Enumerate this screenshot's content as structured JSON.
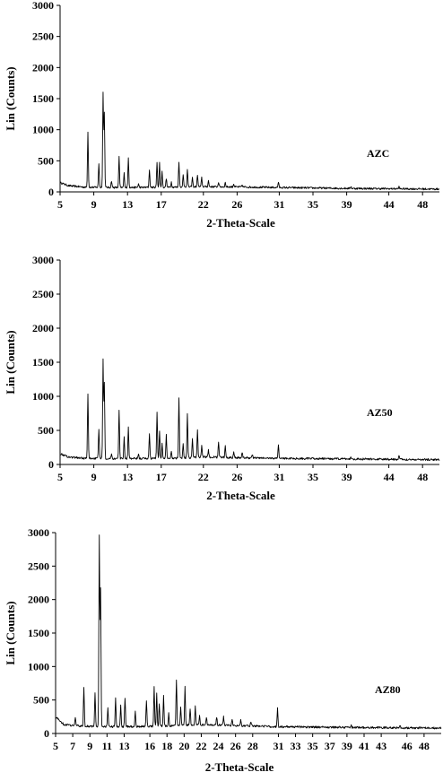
{
  "chart_data": [
    {
      "type": "line",
      "xlabel": "2-Theta-Scale",
      "ylabel": "Lin (Counts)",
      "annotation": "AZC",
      "xlim": [
        5,
        50
      ],
      "ylim": [
        0,
        3000
      ],
      "xticks": [
        5,
        9,
        13,
        17,
        22,
        26,
        31,
        35,
        39,
        44,
        48
      ],
      "yticks": [
        0,
        500,
        1000,
        1500,
        2000,
        2500,
        3000
      ],
      "baseline": [
        [
          5,
          150
        ],
        [
          6,
          100
        ],
        [
          8,
          75
        ],
        [
          12,
          70
        ],
        [
          18,
          75
        ],
        [
          22,
          85
        ],
        [
          26,
          80
        ],
        [
          31,
          70
        ],
        [
          40,
          55
        ],
        [
          50,
          45
        ]
      ],
      "peaks": [
        [
          8.3,
          960
        ],
        [
          9.6,
          460
        ],
        [
          10.1,
          1590
        ],
        [
          10.25,
          1280
        ],
        [
          11.1,
          180
        ],
        [
          12.0,
          560
        ],
        [
          12.6,
          300
        ],
        [
          13.1,
          560
        ],
        [
          14.3,
          130
        ],
        [
          15.6,
          360
        ],
        [
          16.5,
          480
        ],
        [
          16.8,
          470
        ],
        [
          17.1,
          330
        ],
        [
          17.6,
          220
        ],
        [
          18.2,
          160
        ],
        [
          19.1,
          490
        ],
        [
          19.6,
          290
        ],
        [
          20.1,
          370
        ],
        [
          20.7,
          230
        ],
        [
          21.3,
          280
        ],
        [
          21.8,
          230
        ],
        [
          22.6,
          180
        ],
        [
          23.8,
          160
        ],
        [
          24.6,
          150
        ],
        [
          25.6,
          130
        ],
        [
          26.6,
          110
        ],
        [
          30.9,
          160
        ],
        [
          39.5,
          90
        ],
        [
          45.2,
          80
        ]
      ],
      "series": [
        {
          "values": []
        }
      ]
    },
    {
      "type": "line",
      "xlabel": "2-Theta-Scale",
      "ylabel": "Lin (Counts)",
      "annotation": "AZ50",
      "xlim": [
        5,
        50
      ],
      "ylim": [
        0,
        3000
      ],
      "xticks": [
        5,
        9,
        13,
        17,
        22,
        26,
        31,
        35,
        39,
        44,
        48
      ],
      "yticks": [
        0,
        500,
        1000,
        1500,
        2000,
        2500,
        3000
      ],
      "baseline": [
        [
          5,
          160
        ],
        [
          6,
          110
        ],
        [
          8,
          90
        ],
        [
          12,
          85
        ],
        [
          18,
          90
        ],
        [
          22,
          110
        ],
        [
          26,
          100
        ],
        [
          31,
          90
        ],
        [
          40,
          80
        ],
        [
          50,
          70
        ]
      ],
      "peaks": [
        [
          8.3,
          1040
        ],
        [
          9.6,
          530
        ],
        [
          10.1,
          1530
        ],
        [
          10.25,
          1200
        ],
        [
          11.1,
          160
        ],
        [
          12.0,
          800
        ],
        [
          12.6,
          400
        ],
        [
          13.1,
          550
        ],
        [
          14.3,
          150
        ],
        [
          15.6,
          460
        ],
        [
          16.5,
          780
        ],
        [
          16.8,
          500
        ],
        [
          17.1,
          300
        ],
        [
          17.6,
          430
        ],
        [
          18.2,
          200
        ],
        [
          19.1,
          990
        ],
        [
          19.6,
          300
        ],
        [
          20.1,
          750
        ],
        [
          20.7,
          370
        ],
        [
          21.3,
          510
        ],
        [
          21.8,
          270
        ],
        [
          22.6,
          210
        ],
        [
          23.8,
          340
        ],
        [
          24.6,
          270
        ],
        [
          25.6,
          200
        ],
        [
          26.6,
          180
        ],
        [
          27.8,
          150
        ],
        [
          30.9,
          300
        ],
        [
          39.5,
          110
        ],
        [
          45.2,
          130
        ]
      ],
      "series": [
        {
          "values": []
        }
      ]
    },
    {
      "type": "line",
      "xlabel": "2-Theta-Scale",
      "ylabel": "Lin (Counts)",
      "annotation": "AZ80",
      "xlim": [
        5,
        50
      ],
      "ylim": [
        0,
        3000
      ],
      "xticks": [
        5,
        7,
        9,
        11,
        13,
        16,
        18,
        20,
        22,
        24,
        26,
        28,
        31,
        33,
        35,
        37,
        39,
        41,
        43,
        46,
        48
      ],
      "yticks": [
        0,
        500,
        1000,
        1500,
        2000,
        2500,
        3000
      ],
      "baseline": [
        [
          5,
          250
        ],
        [
          6,
          130
        ],
        [
          8,
          110
        ],
        [
          12,
          100
        ],
        [
          18,
          110
        ],
        [
          22,
          130
        ],
        [
          26,
          120
        ],
        [
          31,
          100
        ],
        [
          40,
          90
        ],
        [
          50,
          80
        ]
      ],
      "peaks": [
        [
          7.3,
          250
        ],
        [
          8.3,
          700
        ],
        [
          9.6,
          600
        ],
        [
          10.1,
          2930
        ],
        [
          10.25,
          2150
        ],
        [
          11.1,
          380
        ],
        [
          12.0,
          520
        ],
        [
          12.6,
          420
        ],
        [
          13.1,
          540
        ],
        [
          14.3,
          330
        ],
        [
          15.6,
          500
        ],
        [
          16.5,
          690
        ],
        [
          16.8,
          600
        ],
        [
          17.1,
          450
        ],
        [
          17.6,
          560
        ],
        [
          18.2,
          300
        ],
        [
          19.1,
          810
        ],
        [
          19.6,
          400
        ],
        [
          20.1,
          700
        ],
        [
          20.7,
          380
        ],
        [
          21.3,
          400
        ],
        [
          21.8,
          260
        ],
        [
          22.6,
          250
        ],
        [
          23.8,
          250
        ],
        [
          24.6,
          250
        ],
        [
          25.6,
          200
        ],
        [
          26.6,
          200
        ],
        [
          27.8,
          180
        ],
        [
          30.9,
          370
        ],
        [
          39.5,
          120
        ],
        [
          45.2,
          120
        ]
      ],
      "series": [
        {
          "values": []
        }
      ]
    }
  ]
}
